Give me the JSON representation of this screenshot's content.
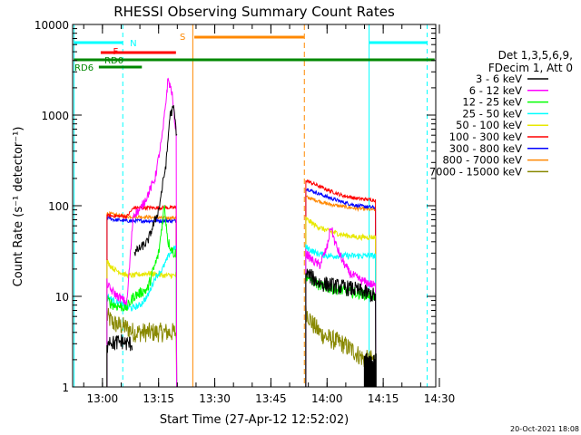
{
  "chart_data": {
    "type": "line",
    "title": "RHESSI Observing Summary Count Rates",
    "xlabel": "Start Time (27-Apr-12 12:52:02)",
    "ylabel": "Count Rate (s⁻¹ detector⁻¹)",
    "yscale": "log",
    "ylim": [
      1,
      10000
    ],
    "xlim_minutes_after_start": [
      0,
      97
    ],
    "x_ticks": [
      "13:00",
      "13:15",
      "13:30",
      "13:45",
      "14:00",
      "14:15",
      "14:30"
    ],
    "y_ticks": [
      "1",
      "10",
      "100",
      "1000",
      "10000"
    ],
    "legend_title": [
      "Det 1,3,5,6,9,",
      "FDecim 1, Att 0"
    ],
    "legend": [
      {
        "label": "3 - 6 keV",
        "color": "#000000"
      },
      {
        "label": "6 - 12 keV",
        "color": "#ff00ff"
      },
      {
        "label": "12 - 25 keV",
        "color": "#00ff00"
      },
      {
        "label": "25 - 50 keV",
        "color": "#00ffff"
      },
      {
        "label": "50 - 100 keV",
        "color": "#e8e800"
      },
      {
        "label": "100 - 300 keV",
        "color": "#ff0000"
      },
      {
        "label": "300 - 800 keV",
        "color": "#0000ff"
      },
      {
        "label": "800 - 7000 keV",
        "color": "#ff8800"
      },
      {
        "label": "7000 - 15000 keV",
        "color": "#888800"
      }
    ],
    "flag_labels": [
      "N",
      "F",
      "S",
      "RD0",
      "RD6"
    ],
    "timestamp": "20-Oct-2021 18:08"
  }
}
